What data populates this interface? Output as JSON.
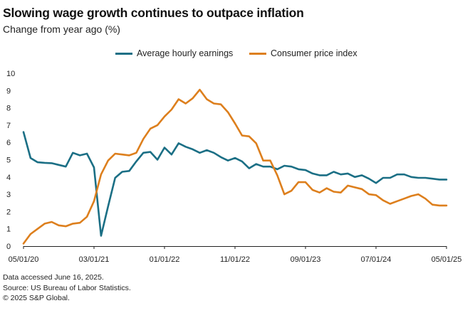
{
  "chart_data": {
    "type": "line",
    "title": "Slowing wage growth continues to outpace inflation",
    "subtitle": "Change from year ago (%)",
    "xlabel": "",
    "ylabel": "",
    "ylim": [
      0,
      10
    ],
    "yticks": [
      "0",
      "1",
      "2",
      "3",
      "4",
      "5",
      "6",
      "7",
      "8",
      "9",
      "10"
    ],
    "xticks": [
      {
        "label": "05/01/20",
        "index": 0
      },
      {
        "label": "03/01/21",
        "index": 10
      },
      {
        "label": "01/01/22",
        "index": 20
      },
      {
        "label": "11/01/22",
        "index": 30
      },
      {
        "label": "09/01/23",
        "index": 40
      },
      {
        "label": "07/01/24",
        "index": 50
      },
      {
        "label": "05/01/25",
        "index": 60
      }
    ],
    "legend_position": "top-center",
    "series": [
      {
        "name": "Average hourly earnings",
        "color": "#1b6f85",
        "values": [
          6.6,
          5.1,
          4.85,
          4.82,
          4.8,
          4.7,
          4.6,
          5.4,
          5.25,
          5.35,
          4.55,
          0.6,
          2.3,
          3.95,
          4.3,
          4.35,
          4.9,
          5.4,
          5.45,
          5.0,
          5.7,
          5.3,
          5.95,
          5.75,
          5.6,
          5.4,
          5.55,
          5.4,
          5.15,
          4.95,
          5.1,
          4.9,
          4.5,
          4.75,
          4.6,
          4.6,
          4.45,
          4.65,
          4.6,
          4.45,
          4.4,
          4.2,
          4.1,
          4.1,
          4.3,
          4.15,
          4.2,
          4.0,
          4.1,
          3.9,
          3.65,
          3.95,
          3.95,
          4.15,
          4.15,
          4.0,
          3.95,
          3.95,
          3.9,
          3.85,
          3.85
        ]
      },
      {
        "name": "Consumer price index",
        "color": "#dd7f1d",
        "values": [
          0.15,
          0.7,
          1.0,
          1.3,
          1.4,
          1.2,
          1.15,
          1.3,
          1.35,
          1.7,
          2.6,
          4.15,
          4.95,
          5.35,
          5.3,
          5.25,
          5.4,
          6.2,
          6.8,
          7.0,
          7.5,
          7.9,
          8.5,
          8.25,
          8.55,
          9.05,
          8.5,
          8.25,
          8.2,
          7.75,
          7.1,
          6.4,
          6.35,
          5.95,
          4.95,
          4.95,
          4.1,
          3.0,
          3.2,
          3.7,
          3.7,
          3.25,
          3.1,
          3.35,
          3.15,
          3.1,
          3.5,
          3.4,
          3.3,
          3.0,
          2.95,
          2.65,
          2.45,
          2.6,
          2.75,
          2.9,
          3.0,
          2.75,
          2.4,
          2.35,
          2.35
        ]
      }
    ],
    "notes": [
      "Data accessed June 16, 2025.",
      "Source: US Bureau of Labor Statistics.",
      "© 2025 S&P Global."
    ]
  }
}
